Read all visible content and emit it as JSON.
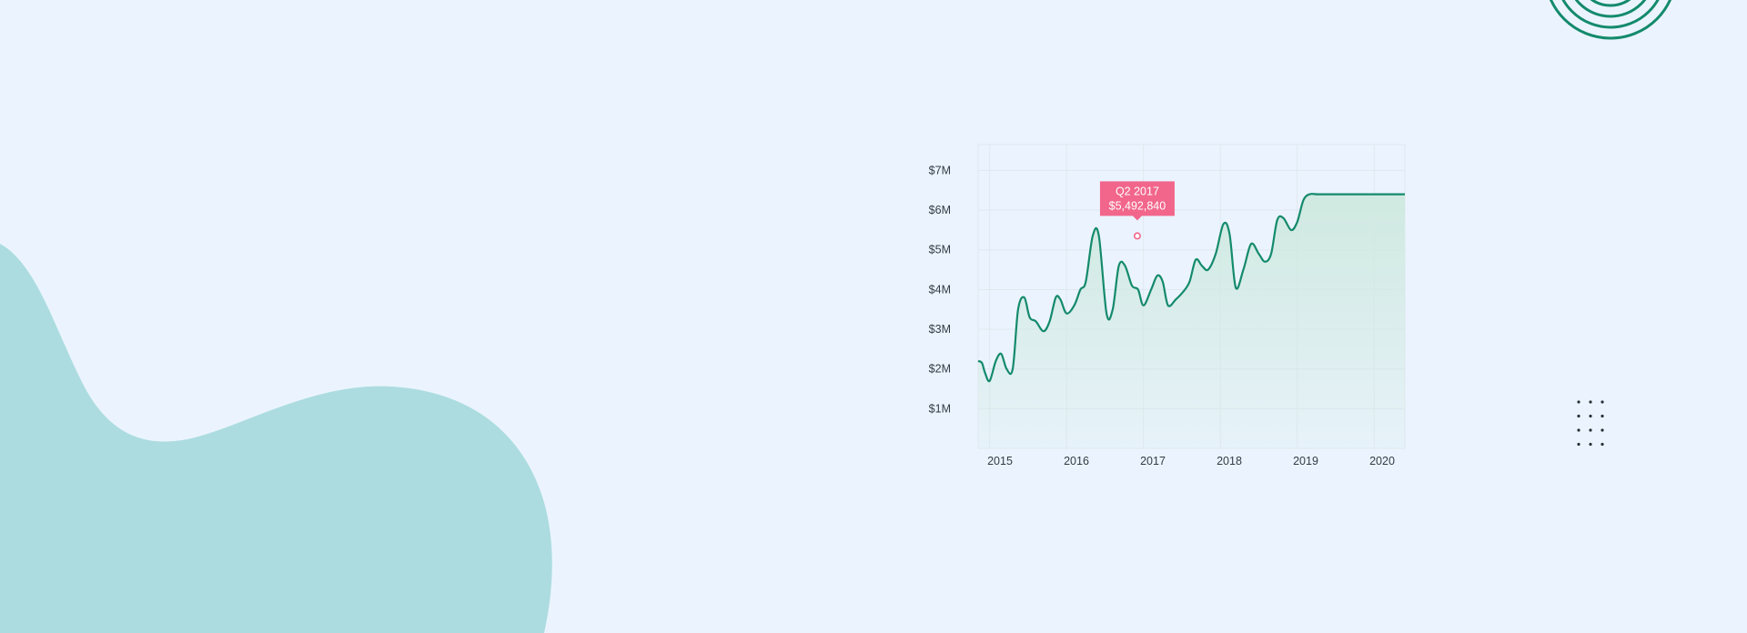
{
  "colors": {
    "background": "#ebf4fe",
    "blob": "#acdce0",
    "line": "#148a6c",
    "area_top": "#cfe9e0",
    "grid": "#dfe7ef",
    "tooltip": "#f2668b",
    "dots": "#2a2f36"
  },
  "decor": {
    "rings_icon": "concentric-rings-icon",
    "dots_icon": "dot-grid-icon"
  },
  "chart_data": {
    "type": "area",
    "title": "",
    "xlabel": "",
    "ylabel": "",
    "x_ticks": [
      "2015",
      "2016",
      "2017",
      "2018",
      "2019",
      "2020"
    ],
    "y_ticks": [
      "$1M",
      "$2M",
      "$3M",
      "$4M",
      "$5M",
      "$6M",
      "$7M"
    ],
    "xlim": [
      2014.85,
      2020.4
    ],
    "ylim": [
      0,
      7.65
    ],
    "grid": true,
    "x": [
      2014.85,
      2014.9,
      2014.94,
      2015.0,
      2015.08,
      2015.15,
      2015.22,
      2015.3,
      2015.37,
      2015.45,
      2015.52,
      2015.6,
      2015.7,
      2015.78,
      2015.86,
      2015.92,
      2016.0,
      2016.1,
      2016.18,
      2016.25,
      2016.34,
      2016.42,
      2016.52,
      2016.6,
      2016.68,
      2016.76,
      2016.85,
      2016.93,
      2017.0,
      2017.1,
      2017.18,
      2017.25,
      2017.32,
      2017.42,
      2017.52,
      2017.6,
      2017.68,
      2017.76,
      2017.84,
      2017.94,
      2018.04,
      2018.12,
      2018.2,
      2018.3,
      2018.4,
      2018.5,
      2018.58,
      2018.66,
      2018.74,
      2018.82,
      2018.92,
      2019.0,
      2019.08,
      2019.16,
      2019.26,
      2019.36,
      2019.44,
      2019.52,
      2019.62,
      2019.72,
      2019.8,
      2019.88,
      2019.96,
      2020.04,
      2020.1,
      2020.18,
      2020.26,
      2020.33,
      2020.4
    ],
    "y": [
      2.2,
      2.15,
      1.9,
      1.7,
      2.2,
      2.38,
      2.0,
      2.0,
      3.5,
      3.8,
      3.3,
      3.2,
      2.95,
      3.2,
      3.8,
      3.75,
      3.4,
      3.6,
      4.0,
      4.2,
      5.35,
      5.35,
      3.4,
      3.5,
      4.6,
      4.6,
      4.1,
      4.0,
      3.6,
      4.0,
      4.35,
      4.2,
      3.6,
      3.75,
      3.95,
      4.2,
      4.75,
      4.6,
      4.5,
      4.9,
      5.65,
      5.4,
      4.05,
      4.5,
      5.15,
      4.9,
      4.7,
      4.9,
      5.75,
      5.8,
      5.5,
      5.7,
      6.25,
      6.4,
      6.4,
      6.4,
      6.4,
      6.4,
      6.4,
      6.4,
      6.4,
      6.4,
      6.4,
      6.4,
      6.4,
      6.4,
      6.4,
      6.4,
      6.4
    ],
    "tooltip": {
      "title": "Q2 2017",
      "value": "$5,492,840",
      "x": 2016.92,
      "y": 5.35
    }
  }
}
